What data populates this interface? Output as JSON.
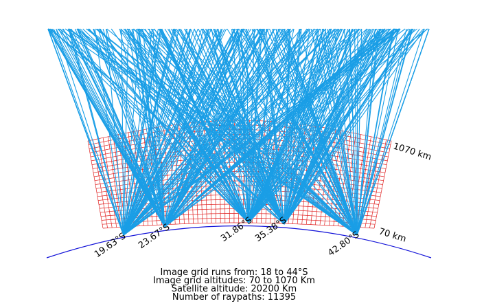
{
  "colors": {
    "ray": "#1a9ee6",
    "grid": "#e02020",
    "earth": "#1010d8",
    "text": "#000000"
  },
  "diagram": {
    "stations": [
      {
        "label": "19.63°S"
      },
      {
        "label": "23.67°S"
      },
      {
        "label": "31.86°S"
      },
      {
        "label": "35.38°S"
      },
      {
        "label": "42.80°S"
      }
    ],
    "altitude_labels": {
      "top": "1070 km",
      "bottom": "70 km"
    }
  },
  "captions": [
    "Image grid runs from: 18 to 44°S",
    "Image grid altitudes: 70 to 1070 Km",
    "Satellite altitude: 20200 Km",
    "Number of raypaths: 11395"
  ]
}
